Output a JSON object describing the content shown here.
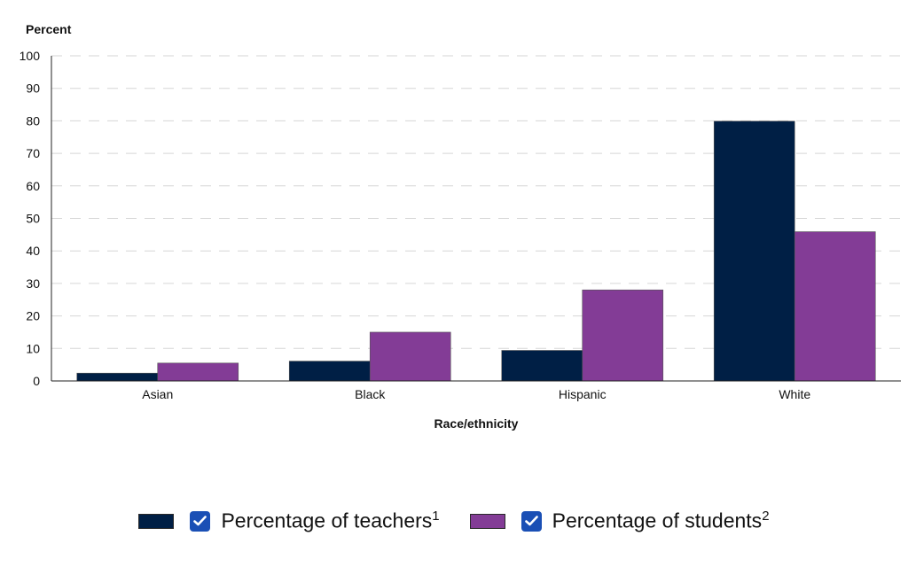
{
  "chart_data": {
    "type": "bar",
    "categories": [
      "Asian",
      "Black",
      "Hispanic",
      "White"
    ],
    "series": [
      {
        "name": "Percentage of teachers",
        "note_mark": "1",
        "values": [
          2.4,
          6.1,
          9.4,
          79.9
        ],
        "color": "#001f45"
      },
      {
        "name": "Percentage of students",
        "note_mark": "2",
        "values": [
          5.5,
          15.0,
          28.0,
          45.9
        ],
        "color": "#833c96"
      }
    ],
    "ylabel": "Percent",
    "xlabel": "Race/ethnicity",
    "ylim": [
      0,
      100
    ],
    "yticks": [
      0,
      10,
      20,
      30,
      40,
      50,
      60,
      70,
      80,
      90,
      100
    ],
    "grid": "dashed horizontal",
    "legend_position": "bottom-center"
  },
  "legend": {
    "checkbox_icon": "checkmark-icon",
    "checkbox_color": "#1a4fb5"
  }
}
